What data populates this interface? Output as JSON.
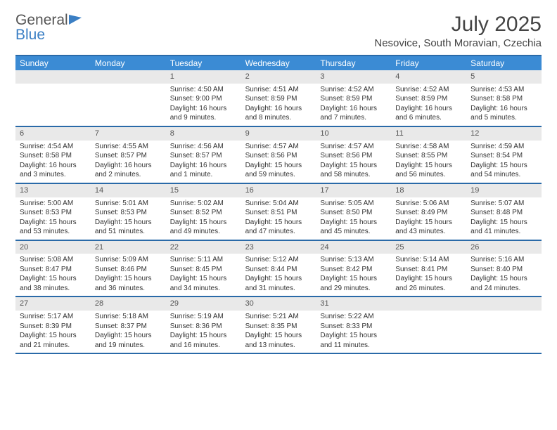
{
  "logo": {
    "text1": "General",
    "text2": "Blue"
  },
  "title": "July 2025",
  "location": "Nesovice, South Moravian, Czechia",
  "colors": {
    "header_bg": "#3b8bd4",
    "header_text": "#ffffff",
    "border": "#2a6aa8",
    "daynum_bg": "#e9e9e9",
    "text": "#333333",
    "logo_gray": "#555555",
    "logo_blue": "#3b7fc4"
  },
  "day_names": [
    "Sunday",
    "Monday",
    "Tuesday",
    "Wednesday",
    "Thursday",
    "Friday",
    "Saturday"
  ],
  "weeks": [
    [
      null,
      null,
      {
        "n": "1",
        "sr": "Sunrise: 4:50 AM",
        "ss": "Sunset: 9:00 PM",
        "dl": "Daylight: 16 hours and 9 minutes."
      },
      {
        "n": "2",
        "sr": "Sunrise: 4:51 AM",
        "ss": "Sunset: 8:59 PM",
        "dl": "Daylight: 16 hours and 8 minutes."
      },
      {
        "n": "3",
        "sr": "Sunrise: 4:52 AM",
        "ss": "Sunset: 8:59 PM",
        "dl": "Daylight: 16 hours and 7 minutes."
      },
      {
        "n": "4",
        "sr": "Sunrise: 4:52 AM",
        "ss": "Sunset: 8:59 PM",
        "dl": "Daylight: 16 hours and 6 minutes."
      },
      {
        "n": "5",
        "sr": "Sunrise: 4:53 AM",
        "ss": "Sunset: 8:58 PM",
        "dl": "Daylight: 16 hours and 5 minutes."
      }
    ],
    [
      {
        "n": "6",
        "sr": "Sunrise: 4:54 AM",
        "ss": "Sunset: 8:58 PM",
        "dl": "Daylight: 16 hours and 3 minutes."
      },
      {
        "n": "7",
        "sr": "Sunrise: 4:55 AM",
        "ss": "Sunset: 8:57 PM",
        "dl": "Daylight: 16 hours and 2 minutes."
      },
      {
        "n": "8",
        "sr": "Sunrise: 4:56 AM",
        "ss": "Sunset: 8:57 PM",
        "dl": "Daylight: 16 hours and 1 minute."
      },
      {
        "n": "9",
        "sr": "Sunrise: 4:57 AM",
        "ss": "Sunset: 8:56 PM",
        "dl": "Daylight: 15 hours and 59 minutes."
      },
      {
        "n": "10",
        "sr": "Sunrise: 4:57 AM",
        "ss": "Sunset: 8:56 PM",
        "dl": "Daylight: 15 hours and 58 minutes."
      },
      {
        "n": "11",
        "sr": "Sunrise: 4:58 AM",
        "ss": "Sunset: 8:55 PM",
        "dl": "Daylight: 15 hours and 56 minutes."
      },
      {
        "n": "12",
        "sr": "Sunrise: 4:59 AM",
        "ss": "Sunset: 8:54 PM",
        "dl": "Daylight: 15 hours and 54 minutes."
      }
    ],
    [
      {
        "n": "13",
        "sr": "Sunrise: 5:00 AM",
        "ss": "Sunset: 8:53 PM",
        "dl": "Daylight: 15 hours and 53 minutes."
      },
      {
        "n": "14",
        "sr": "Sunrise: 5:01 AM",
        "ss": "Sunset: 8:53 PM",
        "dl": "Daylight: 15 hours and 51 minutes."
      },
      {
        "n": "15",
        "sr": "Sunrise: 5:02 AM",
        "ss": "Sunset: 8:52 PM",
        "dl": "Daylight: 15 hours and 49 minutes."
      },
      {
        "n": "16",
        "sr": "Sunrise: 5:04 AM",
        "ss": "Sunset: 8:51 PM",
        "dl": "Daylight: 15 hours and 47 minutes."
      },
      {
        "n": "17",
        "sr": "Sunrise: 5:05 AM",
        "ss": "Sunset: 8:50 PM",
        "dl": "Daylight: 15 hours and 45 minutes."
      },
      {
        "n": "18",
        "sr": "Sunrise: 5:06 AM",
        "ss": "Sunset: 8:49 PM",
        "dl": "Daylight: 15 hours and 43 minutes."
      },
      {
        "n": "19",
        "sr": "Sunrise: 5:07 AM",
        "ss": "Sunset: 8:48 PM",
        "dl": "Daylight: 15 hours and 41 minutes."
      }
    ],
    [
      {
        "n": "20",
        "sr": "Sunrise: 5:08 AM",
        "ss": "Sunset: 8:47 PM",
        "dl": "Daylight: 15 hours and 38 minutes."
      },
      {
        "n": "21",
        "sr": "Sunrise: 5:09 AM",
        "ss": "Sunset: 8:46 PM",
        "dl": "Daylight: 15 hours and 36 minutes."
      },
      {
        "n": "22",
        "sr": "Sunrise: 5:11 AM",
        "ss": "Sunset: 8:45 PM",
        "dl": "Daylight: 15 hours and 34 minutes."
      },
      {
        "n": "23",
        "sr": "Sunrise: 5:12 AM",
        "ss": "Sunset: 8:44 PM",
        "dl": "Daylight: 15 hours and 31 minutes."
      },
      {
        "n": "24",
        "sr": "Sunrise: 5:13 AM",
        "ss": "Sunset: 8:42 PM",
        "dl": "Daylight: 15 hours and 29 minutes."
      },
      {
        "n": "25",
        "sr": "Sunrise: 5:14 AM",
        "ss": "Sunset: 8:41 PM",
        "dl": "Daylight: 15 hours and 26 minutes."
      },
      {
        "n": "26",
        "sr": "Sunrise: 5:16 AM",
        "ss": "Sunset: 8:40 PM",
        "dl": "Daylight: 15 hours and 24 minutes."
      }
    ],
    [
      {
        "n": "27",
        "sr": "Sunrise: 5:17 AM",
        "ss": "Sunset: 8:39 PM",
        "dl": "Daylight: 15 hours and 21 minutes."
      },
      {
        "n": "28",
        "sr": "Sunrise: 5:18 AM",
        "ss": "Sunset: 8:37 PM",
        "dl": "Daylight: 15 hours and 19 minutes."
      },
      {
        "n": "29",
        "sr": "Sunrise: 5:19 AM",
        "ss": "Sunset: 8:36 PM",
        "dl": "Daylight: 15 hours and 16 minutes."
      },
      {
        "n": "30",
        "sr": "Sunrise: 5:21 AM",
        "ss": "Sunset: 8:35 PM",
        "dl": "Daylight: 15 hours and 13 minutes."
      },
      {
        "n": "31",
        "sr": "Sunrise: 5:22 AM",
        "ss": "Sunset: 8:33 PM",
        "dl": "Daylight: 15 hours and 11 minutes."
      },
      null,
      null
    ]
  ]
}
